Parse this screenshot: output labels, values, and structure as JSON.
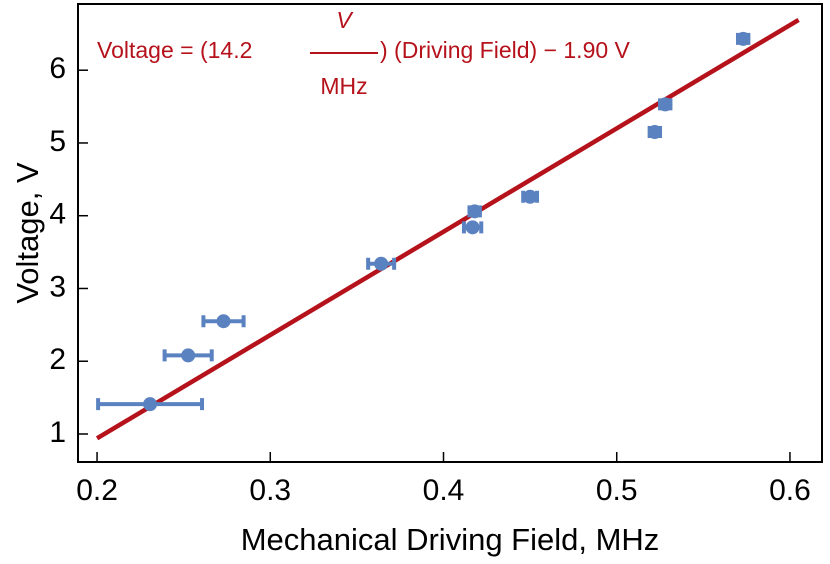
{
  "chart_data": {
    "type": "scatter",
    "x_label": "Mechanical Driving Field, MHz",
    "y_label": "Voltage, V",
    "annotation": [
      "Voltage = (14.2",
      "V",
      "MHz",
      ") (Driving Field) − 1.90 V"
    ],
    "xlim": [
      0.189,
      0.6185
    ],
    "ylim": [
      0.615,
      6.91
    ],
    "xticks": [
      {
        "value": 0.2,
        "label": "0.2"
      },
      {
        "value": 0.3,
        "label": "0.3"
      },
      {
        "value": 0.4,
        "label": "0.4"
      },
      {
        "value": 0.5,
        "label": "0.5"
      },
      {
        "value": 0.6,
        "label": "0.6"
      }
    ],
    "yticks": [
      1,
      2,
      3,
      4,
      5,
      6
    ],
    "series": [
      {
        "color": "#5b82c0",
        "x": [
          0.2306,
          0.2526,
          0.273,
          0.364,
          0.4168,
          0.418,
          0.45,
          0.522,
          0.528,
          0.573
        ],
        "values": [
          1.41,
          2.08,
          2.55,
          3.34,
          3.84,
          4.06,
          4.26,
          5.15,
          5.53,
          6.43
        ],
        "xerr": [
          0.03,
          0.0136,
          0.0116,
          0.0075,
          0.005,
          0.003,
          0.004,
          0.003,
          0.003,
          0.003
        ]
      }
    ],
    "fit": {
      "slope": 14.2,
      "intercept": -1.9,
      "color": "#b5121b",
      "x": [
        0.2,
        0.605
      ]
    }
  }
}
